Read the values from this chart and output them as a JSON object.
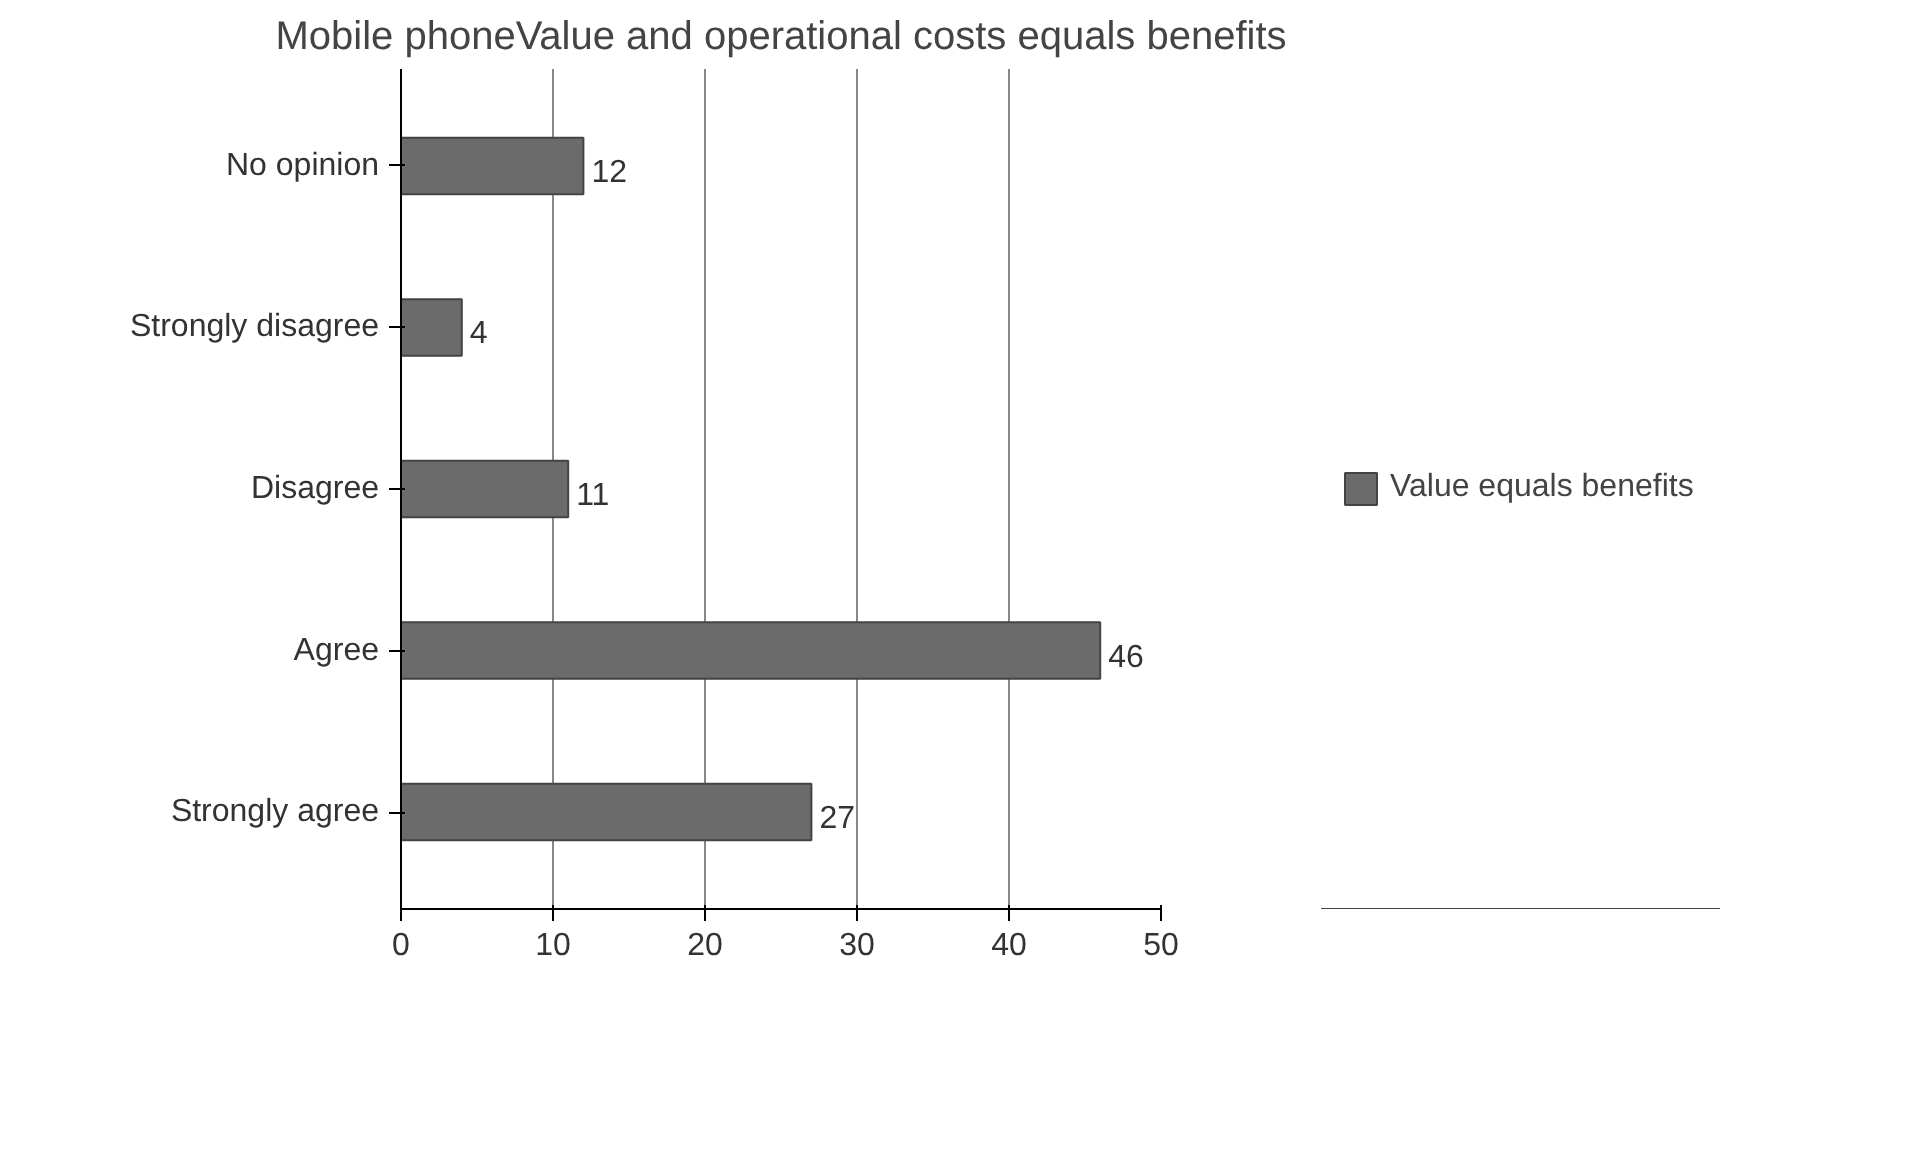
{
  "chart_data": {
    "type": "bar",
    "orientation": "horizontal",
    "title": "Mobile phoneValue and operational costs equals benefits",
    "categories": [
      "No opinion",
      "Strongly disagree",
      "Disagree",
      "Agree",
      "Strongly agree"
    ],
    "series": [
      {
        "name": "Value equals benefits",
        "color": "#6b6b6b",
        "values": [
          12,
          4,
          11,
          46,
          27
        ]
      }
    ],
    "xlim": [
      0,
      50
    ],
    "xticks": [
      0,
      10,
      20,
      30,
      40,
      50
    ],
    "grid": "x",
    "legend": "right",
    "data_labels": true
  }
}
